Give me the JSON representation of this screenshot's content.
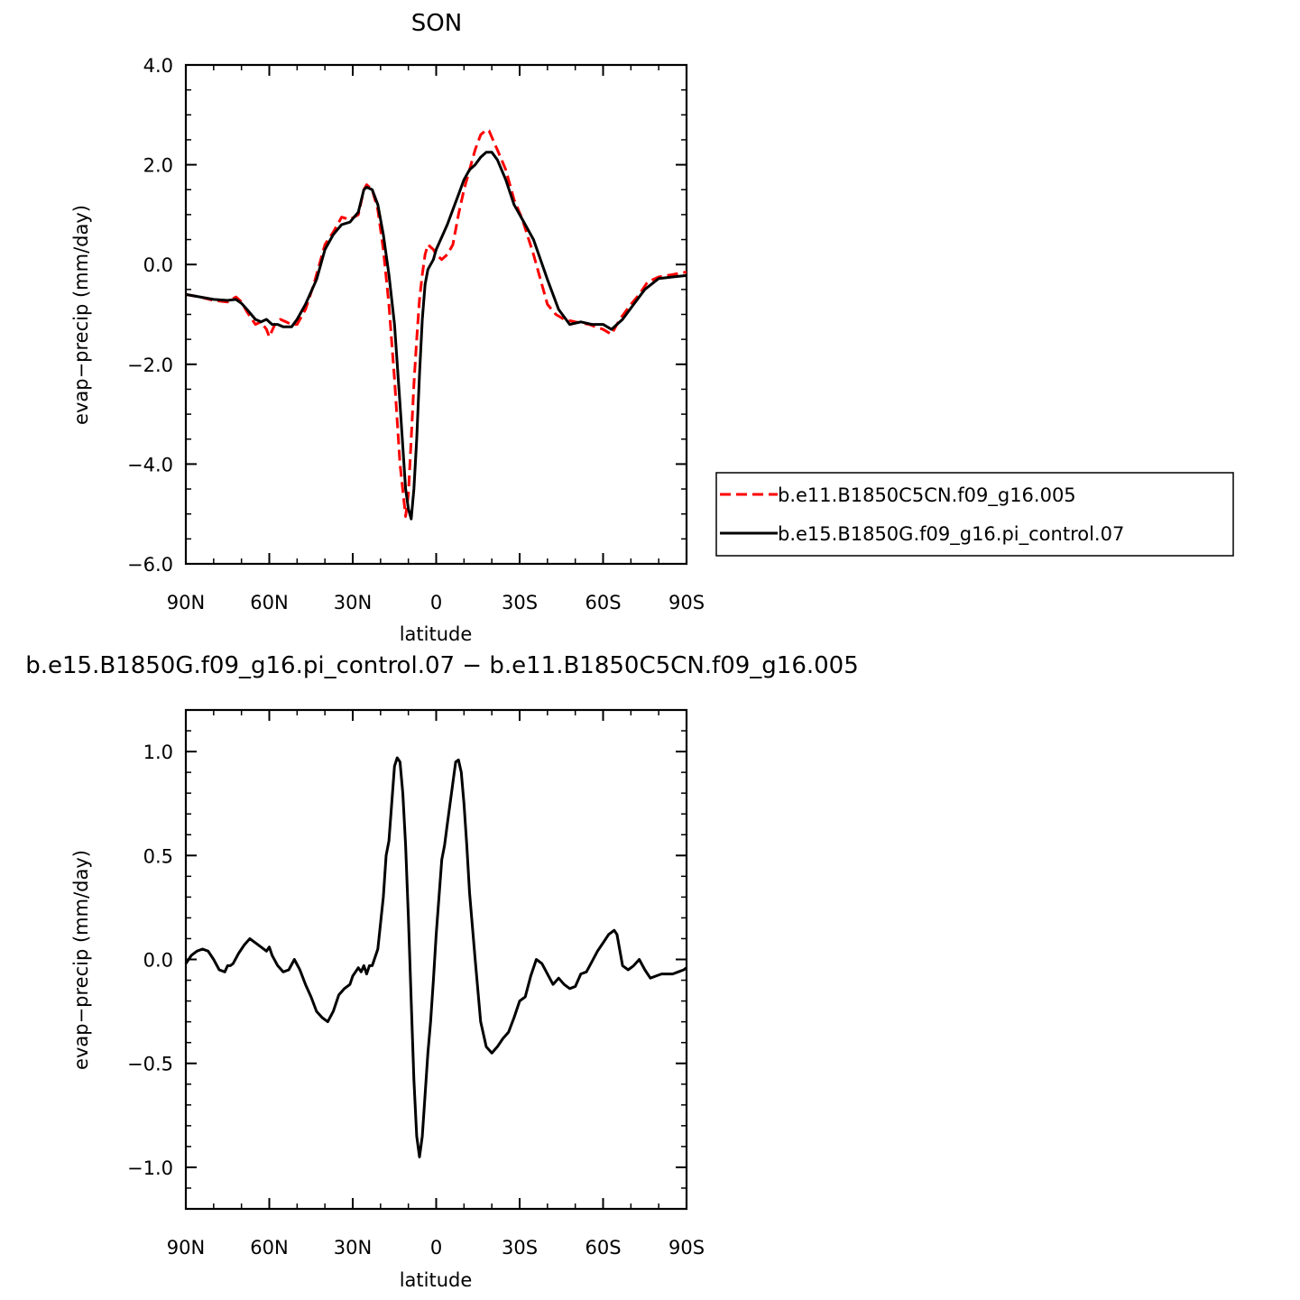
{
  "colors": {
    "background": "#ffffff",
    "series_1": "#ff0000",
    "series_2": "#000000",
    "axes": "#000000"
  },
  "chart_data": [
    {
      "type": "line",
      "title": "SON",
      "xlabel": "latitude",
      "ylabel": "evap−precip (mm/day)",
      "xlim": [
        -90,
        90
      ],
      "ylim": [
        -6,
        4
      ],
      "x_direction": "north-to-south",
      "xticks": [
        -90,
        -60,
        -30,
        0,
        30,
        60,
        90
      ],
      "xtick_labels": [
        "90N",
        "60N",
        "30N",
        "0",
        "30S",
        "60S",
        "90S"
      ],
      "yticks": [
        -6,
        -4,
        -2,
        0,
        2,
        4
      ],
      "ytick_labels": [
        "−6.0",
        "−4.0",
        "−2.0",
        "0.0",
        "2.0",
        "4.0"
      ],
      "legend": "right",
      "series": [
        {
          "name": "b.e11.B1850C5CN.f09_g16.005",
          "style": "dashed",
          "color": "#ff0000",
          "x": [
            -90,
            -85,
            -80,
            -75,
            -72,
            -70,
            -68,
            -65,
            -63,
            -61,
            -60,
            -58,
            -56,
            -54,
            -52,
            -50,
            -47,
            -44,
            -40,
            -37,
            -34,
            -31,
            -28,
            -26,
            -25,
            -23,
            -21,
            -19,
            -17,
            -15,
            -13,
            -11,
            -10,
            -9,
            -8,
            -7,
            -6,
            -5,
            -4,
            -3,
            -1,
            0,
            2,
            4,
            6,
            8,
            10,
            12,
            14,
            16,
            18,
            19,
            20,
            22,
            25,
            28,
            31,
            35,
            40,
            43,
            46,
            50,
            55,
            60,
            63,
            66,
            70,
            73,
            76,
            80,
            85,
            90
          ],
          "values": [
            -0.6,
            -0.65,
            -0.72,
            -0.75,
            -0.65,
            -0.75,
            -0.95,
            -1.2,
            -1.15,
            -1.3,
            -1.45,
            -1.2,
            -1.1,
            -1.15,
            -1.2,
            -1.2,
            -0.9,
            -0.4,
            0.4,
            0.65,
            0.95,
            0.9,
            1.0,
            1.5,
            1.6,
            1.5,
            1.1,
            0.3,
            -0.8,
            -2.3,
            -4.0,
            -5.05,
            -4.6,
            -3.5,
            -2.4,
            -1.5,
            -0.7,
            -0.2,
            0.2,
            0.4,
            0.3,
            0.2,
            0.1,
            0.2,
            0.4,
            1.0,
            1.5,
            1.9,
            2.3,
            2.6,
            2.7,
            2.68,
            2.55,
            2.3,
            1.9,
            1.3,
            0.9,
            0.2,
            -0.8,
            -1.0,
            -1.1,
            -1.15,
            -1.2,
            -1.3,
            -1.4,
            -1.1,
            -0.8,
            -0.6,
            -0.35,
            -0.25,
            -0.2,
            -0.15
          ]
        },
        {
          "name": "b.e15.B1850G.f09_g16.pi_control.07",
          "style": "solid",
          "color": "#000000",
          "x": [
            -90,
            -85,
            -80,
            -75,
            -72,
            -70,
            -68,
            -65,
            -63,
            -61,
            -59,
            -57,
            -55,
            -52,
            -50,
            -47,
            -43,
            -40,
            -37,
            -34,
            -31,
            -28,
            -26,
            -25,
            -23,
            -21,
            -19,
            -17,
            -15,
            -13,
            -11,
            -10,
            -9,
            -8,
            -7,
            -6,
            -5,
            -4,
            -3,
            -1,
            0,
            2,
            4,
            6,
            8,
            10,
            12,
            14,
            16,
            18,
            20,
            22,
            25,
            28,
            31,
            35,
            40,
            44,
            48,
            52,
            56,
            60,
            63,
            67,
            71,
            75,
            80,
            85,
            90
          ],
          "values": [
            -0.6,
            -0.65,
            -0.7,
            -0.72,
            -0.7,
            -0.78,
            -0.9,
            -1.1,
            -1.15,
            -1.1,
            -1.2,
            -1.2,
            -1.25,
            -1.25,
            -1.1,
            -0.8,
            -0.3,
            0.3,
            0.6,
            0.8,
            0.85,
            1.05,
            1.5,
            1.55,
            1.5,
            1.2,
            0.6,
            -0.2,
            -1.2,
            -2.8,
            -4.5,
            -4.9,
            -5.1,
            -4.5,
            -3.5,
            -2.2,
            -1.1,
            -0.4,
            -0.1,
            0.1,
            0.3,
            0.55,
            0.8,
            1.1,
            1.4,
            1.7,
            1.9,
            2.0,
            2.15,
            2.25,
            2.25,
            2.1,
            1.7,
            1.2,
            0.9,
            0.5,
            -0.3,
            -0.9,
            -1.2,
            -1.15,
            -1.2,
            -1.2,
            -1.3,
            -1.1,
            -0.8,
            -0.5,
            -0.28,
            -0.25,
            -0.22
          ]
        }
      ]
    },
    {
      "type": "line",
      "title": "b.e15.B1850G.f09_g16.pi_control.07 − b.e11.B1850C5CN.f09_g16.005",
      "xlabel": "latitude",
      "ylabel": "evap−precip (mm/day)",
      "xlim": [
        -90,
        90
      ],
      "ylim": [
        -1.2,
        1.2
      ],
      "x_direction": "north-to-south",
      "xticks": [
        -90,
        -60,
        -30,
        0,
        30,
        60,
        90
      ],
      "xtick_labels": [
        "90N",
        "60N",
        "30N",
        "0",
        "30S",
        "60S",
        "90S"
      ],
      "yticks": [
        -1.0,
        -0.5,
        0.0,
        0.5,
        1.0
      ],
      "ytick_labels": [
        "−1.0",
        "−0.5",
        "0.0",
        "0.5",
        "1.0"
      ],
      "series": [
        {
          "style": "solid",
          "color": "#000000",
          "x": [
            -90,
            -88,
            -86,
            -84,
            -82,
            -80,
            -78,
            -76,
            -75,
            -74,
            -73,
            -71,
            -69,
            -67,
            -65,
            -63,
            -61,
            -60,
            -59,
            -57,
            -55,
            -53,
            -51,
            -49,
            -47,
            -45,
            -43,
            -41,
            -39,
            -37,
            -35,
            -33,
            -31,
            -30,
            -29,
            -28,
            -27,
            -26,
            -25,
            -24,
            -23,
            -21,
            -19,
            -18,
            -17,
            -16,
            -15,
            -14,
            -13,
            -12,
            -11,
            -10,
            -9,
            -8,
            -7,
            -6,
            -5,
            -4,
            -3,
            -2,
            -1,
            0,
            1,
            2,
            3,
            4,
            5,
            6,
            7,
            8,
            9,
            10,
            11,
            12,
            14,
            16,
            18,
            20,
            22,
            24,
            26,
            28,
            30,
            32,
            34,
            36,
            38,
            40,
            42,
            44,
            46,
            48,
            50,
            52,
            54,
            56,
            58,
            60,
            62,
            64,
            65,
            67,
            69,
            71,
            73,
            75,
            77,
            79,
            81,
            83,
            85,
            87,
            89,
            90
          ],
          "values": [
            -0.02,
            0.02,
            0.04,
            0.05,
            0.04,
            0.0,
            -0.05,
            -0.06,
            -0.03,
            -0.03,
            -0.02,
            0.03,
            0.07,
            0.1,
            0.08,
            0.06,
            0.04,
            0.06,
            0.02,
            -0.03,
            -0.06,
            -0.05,
            0.0,
            -0.05,
            -0.12,
            -0.18,
            -0.25,
            -0.28,
            -0.3,
            -0.25,
            -0.17,
            -0.14,
            -0.12,
            -0.08,
            -0.06,
            -0.04,
            -0.06,
            -0.03,
            -0.07,
            -0.03,
            -0.03,
            0.05,
            0.3,
            0.5,
            0.57,
            0.75,
            0.93,
            0.97,
            0.95,
            0.8,
            0.55,
            0.2,
            -0.2,
            -0.58,
            -0.85,
            -0.95,
            -0.85,
            -0.65,
            -0.45,
            -0.3,
            -0.1,
            0.12,
            0.3,
            0.48,
            0.55,
            0.65,
            0.75,
            0.85,
            0.95,
            0.96,
            0.9,
            0.75,
            0.55,
            0.32,
            0.0,
            -0.3,
            -0.42,
            -0.45,
            -0.42,
            -0.38,
            -0.35,
            -0.28,
            -0.2,
            -0.18,
            -0.08,
            0.0,
            -0.02,
            -0.07,
            -0.12,
            -0.09,
            -0.12,
            -0.14,
            -0.13,
            -0.07,
            -0.06,
            -0.01,
            0.04,
            0.08,
            0.12,
            0.14,
            0.12,
            -0.03,
            -0.05,
            -0.03,
            0.0,
            -0.05,
            -0.09,
            -0.08,
            -0.07,
            -0.07,
            -0.07,
            -0.06,
            -0.05,
            -0.04
          ]
        }
      ]
    }
  ]
}
